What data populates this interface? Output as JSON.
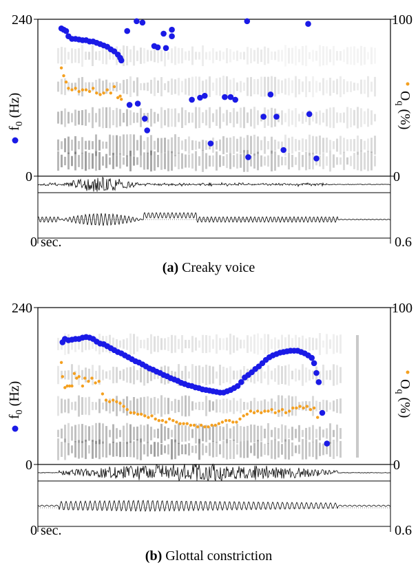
{
  "colors": {
    "f0": "#1a1ae6",
    "oq": "#f4a020",
    "spectrogram": "#1e1e1e",
    "axis": "#000000"
  },
  "chart_data": [
    {
      "type": "scatter",
      "caption_label": "(a)",
      "caption_text": "Creaky voice",
      "x_start_label": "0 sec.",
      "x_end_label": "0.6",
      "xlim": [
        0,
        0.6
      ],
      "left_axis": {
        "label_main": "f",
        "label_sub": "0",
        "label_unit": " (Hz)",
        "range": [
          0,
          240
        ],
        "top_tick": "240",
        "bottom_tick": "0"
      },
      "right_axis": {
        "label_main": "O",
        "label_sub": "q",
        "label_unit": " (%)",
        "range": [
          0,
          100
        ],
        "top_tick": "100",
        "bottom_tick": "0"
      },
      "series": [
        {
          "name": "f0",
          "points": [
            [
              0.04,
              226
            ],
            [
              0.044,
              224
            ],
            [
              0.048,
              222
            ],
            [
              0.052,
              214
            ],
            [
              0.058,
              210
            ],
            [
              0.064,
              210
            ],
            [
              0.07,
              209
            ],
            [
              0.076,
              208
            ],
            [
              0.082,
              208
            ],
            [
              0.088,
              206
            ],
            [
              0.094,
              206
            ],
            [
              0.1,
              204
            ],
            [
              0.106,
              202
            ],
            [
              0.112,
              200
            ],
            [
              0.118,
              198
            ],
            [
              0.124,
              194
            ],
            [
              0.13,
              191
            ],
            [
              0.136,
              186
            ],
            [
              0.14,
              181
            ],
            [
              0.142,
              177
            ],
            [
              0.152,
              222
            ],
            [
              0.168,
              237
            ],
            [
              0.178,
              235
            ],
            [
              0.156,
              109
            ],
            [
              0.17,
              111
            ],
            [
              0.182,
              88
            ],
            [
              0.198,
              199
            ],
            [
              0.204,
              197
            ],
            [
              0.214,
              218
            ],
            [
              0.218,
              196
            ],
            [
              0.228,
              214
            ],
            [
              0.186,
              70
            ],
            [
              0.228,
              224
            ],
            [
              0.262,
              117
            ],
            [
              0.276,
              120
            ],
            [
              0.284,
              123
            ],
            [
              0.294,
              50
            ],
            [
              0.318,
              121
            ],
            [
              0.328,
              121
            ],
            [
              0.336,
              117
            ],
            [
              0.356,
              237
            ],
            [
              0.358,
              29
            ],
            [
              0.384,
              91
            ],
            [
              0.396,
              125
            ],
            [
              0.406,
              91
            ],
            [
              0.418,
              40
            ],
            [
              0.46,
              233
            ],
            [
              0.462,
              95
            ],
            [
              0.474,
              27
            ]
          ]
        },
        {
          "name": "Oq",
          "points": [
            [
              0.04,
              69
            ],
            [
              0.044,
              64
            ],
            [
              0.048,
              60
            ],
            [
              0.052,
              56
            ],
            [
              0.058,
              55
            ],
            [
              0.064,
              56
            ],
            [
              0.07,
              54
            ],
            [
              0.076,
              55
            ],
            [
              0.082,
              55
            ],
            [
              0.088,
              54
            ],
            [
              0.094,
              56
            ],
            [
              0.1,
              53
            ],
            [
              0.106,
              52
            ],
            [
              0.112,
              53
            ],
            [
              0.118,
              55
            ],
            [
              0.124,
              53
            ],
            [
              0.13,
              57
            ],
            [
              0.136,
              50
            ],
            [
              0.14,
              51
            ],
            [
              0.142,
              49
            ]
          ]
        }
      ]
    },
    {
      "type": "scatter",
      "caption_label": "(b)",
      "caption_text": "Glottal constriction",
      "x_start_label": "0 sec.",
      "x_end_label": "0.6",
      "xlim": [
        0,
        0.6
      ],
      "left_axis": {
        "label_main": "f",
        "label_sub": "0",
        "label_unit": " (Hz)",
        "range": [
          0,
          240
        ],
        "top_tick": "240",
        "bottom_tick": "0"
      },
      "right_axis": {
        "label_main": "O",
        "label_sub": "q",
        "label_unit": " (%)",
        "range": [
          0,
          100
        ],
        "top_tick": "100",
        "bottom_tick": "0"
      },
      "series": [
        {
          "name": "f0",
          "points": [
            [
              0.042,
              187
            ],
            [
              0.046,
              192
            ],
            [
              0.052,
              190
            ],
            [
              0.058,
              191
            ],
            [
              0.064,
              192
            ],
            [
              0.07,
              192
            ],
            [
              0.076,
              194
            ],
            [
              0.082,
              195
            ],
            [
              0.088,
              194
            ],
            [
              0.094,
              192
            ],
            [
              0.1,
              188
            ],
            [
              0.106,
              185
            ],
            [
              0.112,
              184
            ],
            [
              0.118,
              181
            ],
            [
              0.124,
              178
            ],
            [
              0.13,
              175
            ],
            [
              0.136,
              172
            ],
            [
              0.142,
              170
            ],
            [
              0.148,
              167
            ],
            [
              0.154,
              164
            ],
            [
              0.16,
              161
            ],
            [
              0.166,
              158
            ],
            [
              0.172,
              156
            ],
            [
              0.178,
              153
            ],
            [
              0.184,
              150
            ],
            [
              0.19,
              147
            ],
            [
              0.196,
              145
            ],
            [
              0.202,
              142
            ],
            [
              0.208,
              140
            ],
            [
              0.214,
              137
            ],
            [
              0.22,
              135
            ],
            [
              0.226,
              132
            ],
            [
              0.232,
              130
            ],
            [
              0.238,
              128
            ],
            [
              0.244,
              125
            ],
            [
              0.25,
              123
            ],
            [
              0.256,
              121
            ],
            [
              0.262,
              120
            ],
            [
              0.268,
              118
            ],
            [
              0.274,
              117
            ],
            [
              0.28,
              115
            ],
            [
              0.286,
              114
            ],
            [
              0.292,
              113
            ],
            [
              0.298,
              112
            ],
            [
              0.304,
              111
            ],
            [
              0.31,
              110
            ],
            [
              0.316,
              110
            ],
            [
              0.322,
              112
            ],
            [
              0.328,
              114
            ],
            [
              0.334,
              117
            ],
            [
              0.34,
              120
            ],
            [
              0.346,
              126
            ],
            [
              0.352,
              133
            ],
            [
              0.358,
              137
            ],
            [
              0.364,
              141
            ],
            [
              0.37,
              146
            ],
            [
              0.376,
              150
            ],
            [
              0.382,
              155
            ],
            [
              0.388,
              160
            ],
            [
              0.394,
              164
            ],
            [
              0.4,
              167
            ],
            [
              0.406,
              169
            ],
            [
              0.412,
              171
            ],
            [
              0.418,
              172
            ],
            [
              0.424,
              173
            ],
            [
              0.43,
              174
            ],
            [
              0.436,
              174
            ],
            [
              0.442,
              174
            ],
            [
              0.448,
              172
            ],
            [
              0.454,
              170
            ],
            [
              0.46,
              167
            ],
            [
              0.466,
              163
            ],
            [
              0.47,
              155
            ],
            [
              0.474,
              140
            ],
            [
              0.478,
              126
            ],
            [
              0.484,
              79
            ],
            [
              0.492,
              32
            ]
          ]
        },
        {
          "name": "Oq",
          "points": [
            [
              0.04,
              65
            ],
            [
              0.042,
              56
            ],
            [
              0.046,
              49
            ],
            [
              0.05,
              50
            ],
            [
              0.054,
              50
            ],
            [
              0.058,
              50
            ],
            [
              0.062,
              58
            ],
            [
              0.066,
              55
            ],
            [
              0.07,
              56
            ],
            [
              0.076,
              50
            ],
            [
              0.08,
              55
            ],
            [
              0.086,
              53
            ],
            [
              0.092,
              55
            ],
            [
              0.098,
              52
            ],
            [
              0.104,
              53
            ],
            [
              0.11,
              45
            ],
            [
              0.116,
              41
            ],
            [
              0.122,
              40
            ],
            [
              0.128,
              41
            ],
            [
              0.134,
              40
            ],
            [
              0.14,
              39
            ],
            [
              0.146,
              37
            ],
            [
              0.152,
              35
            ],
            [
              0.158,
              33
            ],
            [
              0.164,
              33
            ],
            [
              0.17,
              32
            ],
            [
              0.176,
              32
            ],
            [
              0.182,
              31
            ],
            [
              0.188,
              30
            ],
            [
              0.194,
              31
            ],
            [
              0.2,
              29
            ],
            [
              0.206,
              28
            ],
            [
              0.212,
              28
            ],
            [
              0.218,
              27
            ],
            [
              0.224,
              29
            ],
            [
              0.23,
              28
            ],
            [
              0.236,
              27
            ],
            [
              0.242,
              26
            ],
            [
              0.248,
              26
            ],
            [
              0.254,
              26
            ],
            [
              0.26,
              25
            ],
            [
              0.266,
              25
            ],
            [
              0.272,
              24
            ],
            [
              0.278,
              25
            ],
            [
              0.284,
              24
            ],
            [
              0.29,
              24
            ],
            [
              0.296,
              25
            ],
            [
              0.302,
              25
            ],
            [
              0.308,
              26
            ],
            [
              0.314,
              27
            ],
            [
              0.32,
              28
            ],
            [
              0.326,
              28
            ],
            [
              0.332,
              27
            ],
            [
              0.338,
              27
            ],
            [
              0.344,
              29
            ],
            [
              0.35,
              31
            ],
            [
              0.356,
              32
            ],
            [
              0.362,
              34
            ],
            [
              0.368,
              33
            ],
            [
              0.374,
              34
            ],
            [
              0.38,
              33
            ],
            [
              0.386,
              34
            ],
            [
              0.392,
              34
            ],
            [
              0.398,
              35
            ],
            [
              0.404,
              33
            ],
            [
              0.41,
              34
            ],
            [
              0.416,
              35
            ],
            [
              0.422,
              33
            ],
            [
              0.428,
              34
            ],
            [
              0.434,
              36
            ],
            [
              0.44,
              36
            ],
            [
              0.446,
              37
            ],
            [
              0.452,
              36
            ],
            [
              0.458,
              37
            ],
            [
              0.464,
              35
            ],
            [
              0.47,
              36
            ],
            [
              0.476,
              30
            ]
          ]
        }
      ]
    }
  ]
}
